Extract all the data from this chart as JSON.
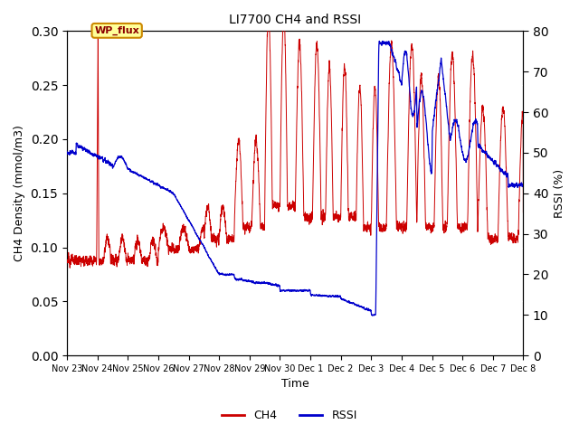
{
  "title": "LI7700 CH4 and RSSI",
  "xlabel": "Time",
  "ylabel_left": "CH4 Density (mmol/m3)",
  "ylabel_right": "RSSI (%)",
  "ylim_left": [
    0.0,
    0.3
  ],
  "ylim_right": [
    0,
    80
  ],
  "yticks_left": [
    0.0,
    0.05,
    0.1,
    0.15,
    0.2,
    0.25,
    0.3
  ],
  "yticks_right": [
    0,
    10,
    20,
    30,
    40,
    50,
    60,
    70,
    80
  ],
  "annotation_text": "WP_flux",
  "annotation_bg": "#ffff99",
  "annotation_edge": "#cc8800",
  "ch4_color": "#cc0000",
  "rssi_color": "#0000cc",
  "background_color": "#e8e8e8",
  "legend_labels": [
    "CH4",
    "RSSI"
  ],
  "n_points": 5000,
  "x_tick_labels": [
    "Nov 23",
    "Nov 24",
    "Nov 25",
    "Nov 26",
    "Nov 27",
    "Nov 28",
    "Nov 29",
    "Nov 30",
    "Dec 1",
    "Dec 2",
    "Dec 3",
    "Dec 4",
    "Dec 5",
    "Dec 6",
    "Dec 7",
    "Dec 8"
  ],
  "figsize": [
    6.4,
    4.8
  ],
  "dpi": 100
}
